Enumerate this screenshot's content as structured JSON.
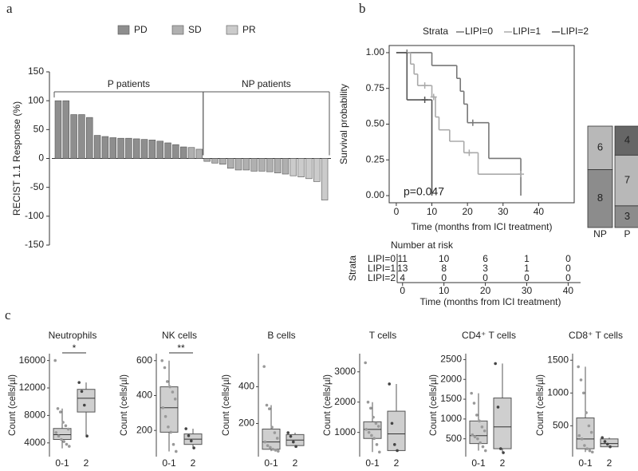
{
  "chart_data": [
    {
      "type": "waterfall",
      "panel_label": "a",
      "y_label": "RECIST 1.1 Response (%)",
      "ylim": [
        -150,
        150
      ],
      "yticks": [
        -150,
        -100,
        -50,
        0,
        50,
        100,
        150
      ],
      "groups": [
        "P patients",
        "NP patients"
      ],
      "series": [
        {
          "name": "PD",
          "color": "#8e8e8e",
          "values": [
            100,
            100,
            76,
            76,
            71,
            40,
            38,
            36,
            35,
            35,
            34,
            33,
            32,
            30,
            27,
            24,
            20,
            null,
            null,
            null,
            null,
            null,
            null,
            null,
            null,
            null,
            null,
            null,
            null,
            null,
            null,
            null,
            null,
            null,
            null
          ]
        },
        {
          "name": "SD",
          "color": "#b0b0b0",
          "values": [
            null,
            null,
            null,
            null,
            null,
            null,
            null,
            null,
            null,
            null,
            null,
            null,
            null,
            null,
            null,
            null,
            null,
            19,
            16,
            -5,
            -8,
            -10,
            -17,
            -20,
            -20,
            -22,
            -22,
            -23,
            -25,
            -27,
            null,
            null,
            null,
            null,
            null
          ]
        },
        {
          "name": "PR",
          "color": "#cbcbcb",
          "values": [
            null,
            null,
            null,
            null,
            null,
            null,
            null,
            null,
            null,
            null,
            null,
            null,
            null,
            null,
            null,
            null,
            null,
            null,
            null,
            null,
            null,
            null,
            null,
            null,
            null,
            null,
            null,
            null,
            null,
            null,
            -30,
            -32,
            -35,
            -40,
            -72
          ]
        }
      ]
    },
    {
      "type": "km",
      "panel_label": "b",
      "legend_title": "Strata",
      "y_label": "Survival probability",
      "x_label": "Time (months from ICI treatment)",
      "annotation": "p=0.047",
      "xlim": [
        -2,
        50
      ],
      "xticks": [
        0,
        10,
        20,
        30,
        40
      ],
      "ylim": [
        -0.05,
        1.05
      ],
      "yticks": [
        {
          "value": 0,
          "label": "0.00"
        },
        {
          "value": 0.25,
          "label": "0.25"
        },
        {
          "value": 0.5,
          "label": "0.50"
        },
        {
          "value": 0.75,
          "label": "0.75"
        },
        {
          "value": 1,
          "label": "1.00"
        }
      ],
      "series": [
        {
          "name": "LIPI=0",
          "color": "#777777",
          "x": [
            0,
            10,
            17,
            18,
            19,
            20,
            26,
            35
          ],
          "values": [
            1,
            0.91,
            0.82,
            0.73,
            0.64,
            0.51,
            0.26,
            0
          ],
          "censor_x": [
            3,
            21.5
          ],
          "censor_y": [
            1,
            0.51
          ]
        },
        {
          "name": "LIPI=1",
          "color": "#aaaaaa",
          "x": [
            0,
            4,
            5,
            6,
            10,
            11,
            12,
            15,
            19,
            23
          ],
          "values": [
            1,
            0.92,
            0.85,
            0.77,
            0.69,
            0.55,
            0.46,
            0.38,
            0.3,
            0.15
          ],
          "censor_x": [
            8,
            10.5,
            20.5,
            35
          ],
          "censor_y": [
            0.77,
            0.69,
            0.3,
            0.15
          ]
        },
        {
          "name": "LIPI=2",
          "color": "#555555",
          "x": [
            0,
            3,
            10
          ],
          "values": [
            1,
            0.67,
            0
          ],
          "censor_x": [
            8
          ],
          "censor_y": [
            0.67
          ]
        }
      ]
    },
    {
      "type": "risk_table",
      "title": "Number at risk",
      "y_label": "Strata",
      "x_label": "Time (months from ICI treatment)",
      "xlim": [
        -1.3,
        43
      ],
      "xticks": [
        0,
        10,
        20,
        30,
        40
      ],
      "rows": [
        {
          "name": "LIPI=0",
          "color": "#777777",
          "values": [
            11,
            10,
            6,
            1,
            0
          ]
        },
        {
          "name": "LIPI=1",
          "color": "#aaaaaa",
          "values": [
            13,
            8,
            3,
            1,
            0
          ]
        },
        {
          "name": "LIPI=2",
          "color": "#555555",
          "values": [
            4,
            0,
            0,
            0,
            0
          ]
        }
      ]
    },
    {
      "type": "mosaic",
      "categories": [
        "NP",
        "P"
      ],
      "series": [
        {
          "color": "#8c8c8c",
          "values": [
            8,
            3
          ]
        },
        {
          "color": "#b8b8b8",
          "values": [
            6,
            7
          ]
        },
        {
          "color": "#666666",
          "values": [
            0,
            4
          ]
        }
      ]
    },
    {
      "type": "box",
      "panel_label": "c",
      "title": "Neutrophils",
      "y_label": "Count (cells/µl)",
      "significance": "*",
      "categories": [
        "0-1",
        "2"
      ],
      "ylim": [
        2000,
        17000
      ],
      "yticks": [
        4000,
        8000,
        12000,
        16000
      ],
      "boxes": [
        {
          "whislo": 3200,
          "q1": 4500,
          "med": 5200,
          "q3": 6100,
          "whishi": 9000,
          "points": [
            16000,
            9000,
            8500,
            7000,
            6500,
            6000,
            5500,
            5000,
            4500,
            4200,
            3800,
            3500
          ]
        },
        {
          "whislo": 5000,
          "q1": 8500,
          "med": 10500,
          "q3": 11800,
          "whishi": 12800,
          "points": [
            12800,
            11500,
            9500,
            5000
          ]
        }
      ]
    },
    {
      "type": "box",
      "title": "NK cells",
      "y_label": "Count (cells/µl)",
      "significance": "**",
      "categories": [
        "0-1",
        "2"
      ],
      "ylim": [
        50,
        640
      ],
      "yticks": [
        200,
        400,
        600
      ],
      "boxes": [
        {
          "whislo": 80,
          "q1": 190,
          "med": 330,
          "q3": 450,
          "whishi": 600,
          "points": [
            600,
            560,
            480,
            450,
            420,
            380,
            330,
            280,
            220,
            190,
            120,
            80
          ]
        },
        {
          "whislo": 100,
          "q1": 120,
          "med": 150,
          "q3": 180,
          "whishi": 210,
          "points": [
            210,
            170,
            140,
            100
          ]
        }
      ]
    },
    {
      "type": "box",
      "title": "B cells",
      "y_label": "Count (cells/µl)",
      "categories": [
        "0-1",
        "2"
      ],
      "ylim": [
        20,
        580
      ],
      "yticks": [
        200,
        400
      ],
      "boxes": [
        {
          "whislo": 50,
          "q1": 60,
          "med": 100,
          "q3": 170,
          "whishi": 300,
          "points": [
            510,
            300,
            280,
            180,
            150,
            120,
            100,
            80,
            70,
            60,
            55,
            50
          ]
        },
        {
          "whislo": 70,
          "q1": 80,
          "med": 110,
          "q3": 140,
          "whishi": 150,
          "points": [
            150,
            130,
            100,
            75
          ]
        }
      ]
    },
    {
      "type": "box",
      "title": "T cells",
      "y_label": "Count (cells/µl)",
      "categories": [
        "0-1",
        "2"
      ],
      "ylim": [
        200,
        3600
      ],
      "yticks": [
        1000,
        2000,
        3000
      ],
      "boxes": [
        {
          "whislo": 350,
          "q1": 800,
          "med": 1100,
          "q3": 1350,
          "whishi": 2000,
          "points": [
            3300,
            2000,
            1800,
            1500,
            1300,
            1200,
            1100,
            1000,
            900,
            800,
            600,
            350
          ]
        },
        {
          "whislo": 400,
          "q1": 400,
          "med": 950,
          "q3": 1700,
          "whishi": 2600,
          "points": [
            2600,
            1300,
            600,
            400
          ]
        }
      ]
    },
    {
      "type": "box",
      "title": "CD4⁺ T cells",
      "y_label": "Count (cells/µl)",
      "categories": [
        "0-1",
        "2"
      ],
      "ylim": [
        50,
        2650
      ],
      "yticks": [
        500,
        1000,
        1500,
        2000,
        2500
      ],
      "boxes": [
        {
          "whislo": 200,
          "q1": 380,
          "med": 580,
          "q3": 950,
          "whishi": 1650,
          "points": [
            1650,
            1400,
            1100,
            950,
            800,
            700,
            600,
            550,
            500,
            400,
            300,
            200
          ]
        },
        {
          "whislo": 150,
          "q1": 250,
          "med": 800,
          "q3": 1530,
          "whishi": 2400,
          "points": [
            2400,
            1300,
            250,
            150
          ]
        }
      ]
    },
    {
      "type": "box",
      "title": "CD8⁺ T cells",
      "y_label": "Count (cells/µl)",
      "categories": [
        "0-1",
        "2"
      ],
      "ylim": [
        30,
        1600
      ],
      "yticks": [
        500,
        1000,
        1500
      ],
      "boxes": [
        {
          "whislo": 100,
          "q1": 150,
          "med": 300,
          "q3": 620,
          "whishi": 1400,
          "points": [
            1400,
            1200,
            1000,
            700,
            500,
            400,
            350,
            300,
            200,
            150,
            120,
            100
          ]
        },
        {
          "whislo": 170,
          "q1": 180,
          "med": 230,
          "q3": 300,
          "whishi": 320,
          "points": [
            320,
            260,
            220,
            180
          ]
        }
      ]
    }
  ]
}
